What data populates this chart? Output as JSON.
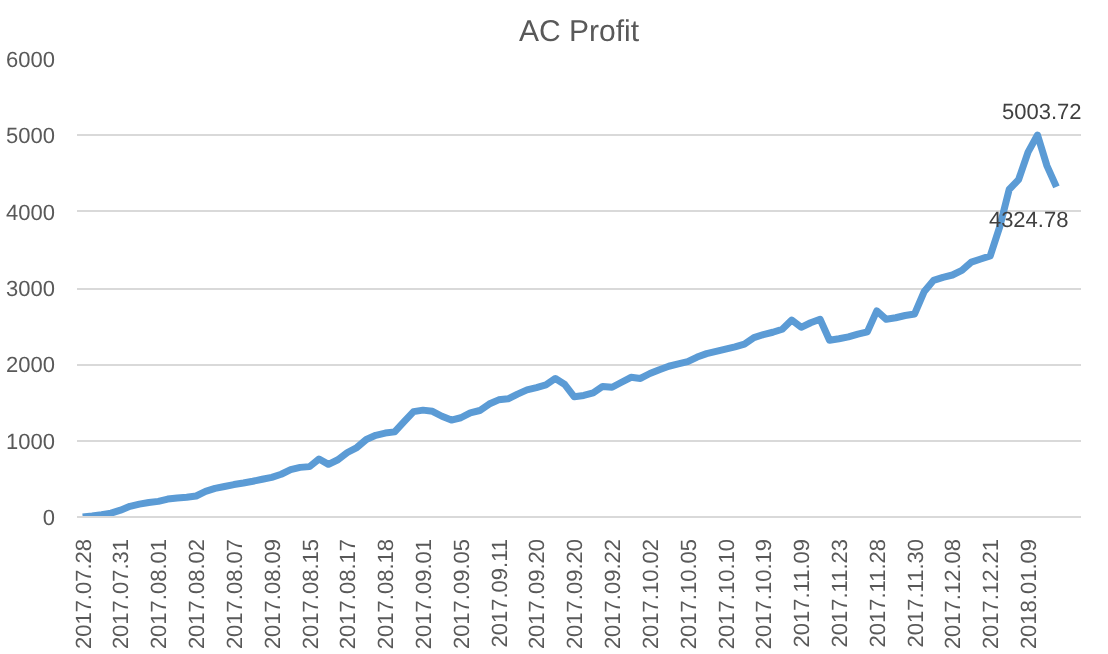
{
  "chart_data": {
    "type": "line",
    "title": "AC Profit",
    "categories": [
      "2017.07.28",
      null,
      null,
      null,
      "2017.07.31",
      null,
      null,
      null,
      "2017.08.01",
      null,
      null,
      null,
      "2017.08.02",
      null,
      null,
      null,
      "2017.08.07",
      null,
      null,
      null,
      "2017.08.09",
      null,
      null,
      null,
      "2017.08.15",
      null,
      null,
      null,
      "2017.08.17",
      null,
      null,
      null,
      "2017.08.18",
      null,
      null,
      null,
      "2017.09.01",
      null,
      null,
      null,
      "2017.09.05",
      null,
      null,
      null,
      "2017.09.11",
      null,
      null,
      null,
      "2017.09.20",
      null,
      null,
      null,
      "2017.09.20",
      null,
      null,
      null,
      "2017.09.22",
      null,
      null,
      null,
      "2017.10.02",
      null,
      null,
      null,
      "2017.10.05",
      null,
      null,
      null,
      "2017.10.10",
      null,
      null,
      null,
      "2017.10.19",
      null,
      null,
      null,
      "2017.11.09",
      null,
      null,
      null,
      "2017.11.23",
      null,
      null,
      null,
      "2017.11.28",
      null,
      null,
      null,
      "2017.11.30",
      null,
      null,
      null,
      "2017.12.08",
      null,
      null,
      null,
      "2017.12.21",
      null,
      null,
      null,
      "2018.01.09",
      null,
      null,
      null
    ],
    "series": [
      {
        "color": "#5b9bd5",
        "values": [
          0,
          13,
          30,
          50,
          90,
          140,
          168,
          190,
          205,
          235,
          250,
          260,
          275,
          335,
          375,
          400,
          425,
          445,
          468,
          495,
          520,
          560,
          620,
          650,
          660,
          760,
          690,
          750,
          845,
          910,
          1015,
          1070,
          1100,
          1115,
          1250,
          1380,
          1400,
          1385,
          1320,
          1270,
          1300,
          1365,
          1395,
          1480,
          1535,
          1548,
          1610,
          1665,
          1695,
          1730,
          1815,
          1735,
          1575,
          1592,
          1625,
          1710,
          1700,
          1765,
          1830,
          1815,
          1880,
          1930,
          1975,
          2005,
          2035,
          2095,
          2140,
          2170,
          2200,
          2230,
          2265,
          2350,
          2390,
          2420,
          2460,
          2580,
          2485,
          2545,
          2590,
          2315,
          2335,
          2360,
          2395,
          2425,
          2700,
          2590,
          2610,
          2640,
          2660,
          2950,
          3100,
          3140,
          3170,
          3230,
          3340,
          3380,
          3420,
          3800,
          4290,
          4420,
          4780,
          5003.72,
          4600,
          4324.78
        ],
        "value_labels": [
          null,
          null,
          null,
          null,
          null,
          null,
          null,
          null,
          null,
          null,
          null,
          null,
          null,
          null,
          null,
          null,
          null,
          null,
          null,
          null,
          null,
          null,
          null,
          null,
          null,
          null,
          null,
          null,
          null,
          null,
          null,
          null,
          null,
          null,
          null,
          null,
          null,
          null,
          null,
          null,
          null,
          null,
          null,
          null,
          null,
          null,
          null,
          null,
          null,
          null,
          null,
          null,
          null,
          null,
          null,
          null,
          null,
          null,
          null,
          null,
          null,
          null,
          null,
          null,
          null,
          null,
          null,
          null,
          null,
          null,
          null,
          null,
          null,
          null,
          null,
          null,
          null,
          null,
          null,
          null,
          null,
          null,
          null,
          null,
          null,
          null,
          null,
          null,
          null,
          null,
          null,
          null,
          null,
          null,
          null,
          null,
          null,
          null,
          null,
          null,
          null,
          "5003.72",
          null,
          "4324.78"
        ]
      }
    ],
    "ylim": [
      0,
      6000
    ],
    "yticks": [
      0,
      1000,
      2000,
      3000,
      4000,
      5000,
      6000
    ],
    "grid": "y",
    "line_style": "solid"
  }
}
